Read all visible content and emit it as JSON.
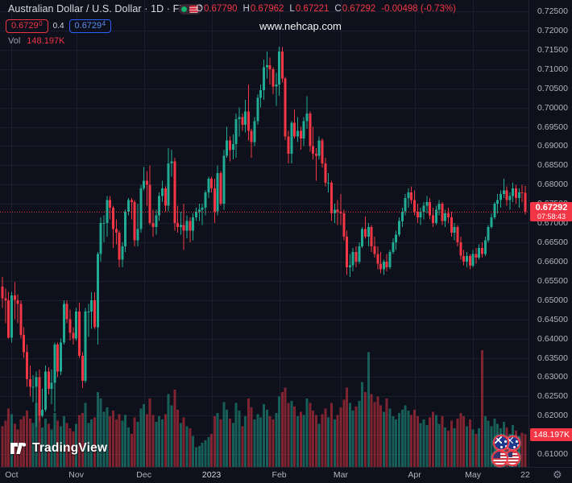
{
  "header": {
    "symbol_title": "Australian Dollar / U.S. Dollar · 1D · FXCM",
    "ohlc": {
      "o_label": "O",
      "o": "0.67790",
      "h_label": "H",
      "h": "0.67962",
      "l_label": "L",
      "l": "0.67221",
      "c_label": "C",
      "c": "0.67292",
      "change": "-0.00498 (-0.73%)"
    },
    "bid": "0.6729",
    "bid_sup": "0",
    "spread": "0.4",
    "ask": "0.6729",
    "ask_sup": "4",
    "vol_label": "Vol",
    "vol_value": "148.197K"
  },
  "watermark": "www.nehcap.com",
  "price_label": {
    "price": "0.67292",
    "countdown": "07:58:43"
  },
  "volume_label": "148.197K",
  "logo": {
    "text": "TradingView"
  },
  "time_axis": {
    "labels": [
      {
        "text": "Oct",
        "index": 3,
        "grid": true,
        "year": false
      },
      {
        "text": "Nov",
        "index": 24,
        "grid": true,
        "year": false
      },
      {
        "text": "Dec",
        "index": 46,
        "grid": true,
        "year": false
      },
      {
        "text": "2023",
        "index": 68,
        "grid": true,
        "year": true
      },
      {
        "text": "Feb",
        "index": 90,
        "grid": true,
        "year": false
      },
      {
        "text": "Mar",
        "index": 110,
        "grid": true,
        "year": false
      },
      {
        "text": "Apr",
        "index": 134,
        "grid": true,
        "year": false
      },
      {
        "text": "May",
        "index": 153,
        "grid": true,
        "year": false
      },
      {
        "text": "22",
        "index": 170,
        "grid": false,
        "year": false
      }
    ],
    "gear": "⚙"
  },
  "price_axis": {
    "ticks": [
      0.725,
      0.72,
      0.715,
      0.71,
      0.705,
      0.7,
      0.695,
      0.69,
      0.685,
      0.68,
      0.675,
      0.67,
      0.665,
      0.66,
      0.655,
      0.65,
      0.645,
      0.64,
      0.635,
      0.63,
      0.625,
      0.62,
      0.615,
      0.61
    ]
  },
  "flags": [
    "australia-flag",
    "australia-flag",
    "us-flag",
    "us-flag"
  ],
  "chart_data": {
    "type": "candlestick+volume",
    "symbol": "AUD/USD",
    "interval": "1D",
    "exchange": "FXCM",
    "current_price": 0.67292,
    "current_volume_k": 148.197,
    "price_axis_range": [
      0.60668,
      0.72793
    ],
    "grid": true,
    "colors": {
      "up": "#22ab94",
      "down": "#f23645",
      "price_line": "#f23645",
      "label_bg": "#f23645"
    },
    "volume_scale_max_k": 530,
    "candles_format": [
      "open",
      "high",
      "low",
      "close",
      "volume_k"
    ],
    "candles": [
      [
        0.6535,
        0.656,
        0.648,
        0.6505,
        185
      ],
      [
        0.6505,
        0.653,
        0.644,
        0.65,
        210
      ],
      [
        0.65,
        0.6522,
        0.64,
        0.6402,
        265
      ],
      [
        0.6402,
        0.6522,
        0.639,
        0.6512,
        240
      ],
      [
        0.6512,
        0.6547,
        0.645,
        0.65,
        195
      ],
      [
        0.65,
        0.6515,
        0.644,
        0.649,
        170
      ],
      [
        0.649,
        0.65,
        0.64,
        0.641,
        215
      ],
      [
        0.641,
        0.643,
        0.635,
        0.6365,
        230
      ],
      [
        0.6365,
        0.6385,
        0.6275,
        0.6295,
        255
      ],
      [
        0.6295,
        0.633,
        0.625,
        0.6275,
        220
      ],
      [
        0.6275,
        0.6305,
        0.6235,
        0.6275,
        200
      ],
      [
        0.6275,
        0.6315,
        0.617,
        0.63,
        290
      ],
      [
        0.63,
        0.632,
        0.6185,
        0.62,
        260
      ],
      [
        0.62,
        0.627,
        0.6195,
        0.6215,
        180
      ],
      [
        0.6215,
        0.633,
        0.621,
        0.6315,
        220
      ],
      [
        0.6315,
        0.6325,
        0.6255,
        0.627,
        195
      ],
      [
        0.627,
        0.632,
        0.623,
        0.6285,
        170
      ],
      [
        0.6285,
        0.639,
        0.621,
        0.6385,
        245
      ],
      [
        0.6385,
        0.639,
        0.63,
        0.6315,
        210
      ],
      [
        0.6315,
        0.64,
        0.6305,
        0.639,
        185
      ],
      [
        0.639,
        0.65,
        0.6385,
        0.649,
        230
      ],
      [
        0.649,
        0.65,
        0.644,
        0.645,
        200
      ],
      [
        0.645,
        0.6475,
        0.6395,
        0.6415,
        175
      ],
      [
        0.6415,
        0.643,
        0.6385,
        0.64,
        160
      ],
      [
        0.64,
        0.648,
        0.6395,
        0.647,
        195
      ],
      [
        0.647,
        0.6493,
        0.635,
        0.6355,
        235
      ],
      [
        0.6355,
        0.6365,
        0.6272,
        0.629,
        245
      ],
      [
        0.629,
        0.648,
        0.6285,
        0.647,
        290
      ],
      [
        0.647,
        0.649,
        0.6405,
        0.647,
        200
      ],
      [
        0.647,
        0.652,
        0.6425,
        0.65,
        215
      ],
      [
        0.65,
        0.652,
        0.6425,
        0.643,
        225
      ],
      [
        0.643,
        0.6625,
        0.6385,
        0.662,
        340
      ],
      [
        0.662,
        0.6715,
        0.66,
        0.67,
        310
      ],
      [
        0.67,
        0.672,
        0.665,
        0.67,
        250
      ],
      [
        0.67,
        0.677,
        0.6665,
        0.676,
        270
      ],
      [
        0.676,
        0.677,
        0.671,
        0.674,
        230
      ],
      [
        0.674,
        0.6745,
        0.6635,
        0.6685,
        255
      ],
      [
        0.6685,
        0.671,
        0.6645,
        0.6675,
        215
      ],
      [
        0.6675,
        0.668,
        0.6585,
        0.6605,
        240
      ],
      [
        0.6605,
        0.665,
        0.6585,
        0.664,
        210
      ],
      [
        0.664,
        0.6735,
        0.6625,
        0.673,
        235
      ],
      [
        0.673,
        0.6765,
        0.672,
        0.676,
        180
      ],
      [
        0.676,
        0.6765,
        0.671,
        0.6755,
        150
      ],
      [
        0.6755,
        0.676,
        0.664,
        0.6655,
        225
      ],
      [
        0.6655,
        0.675,
        0.664,
        0.6685,
        205
      ],
      [
        0.6685,
        0.68,
        0.6675,
        0.679,
        265
      ],
      [
        0.679,
        0.6845,
        0.6785,
        0.681,
        285
      ],
      [
        0.681,
        0.6835,
        0.6745,
        0.68,
        240
      ],
      [
        0.68,
        0.685,
        0.6695,
        0.67,
        310
      ],
      [
        0.67,
        0.6735,
        0.6665,
        0.669,
        235
      ],
      [
        0.669,
        0.6735,
        0.667,
        0.672,
        205
      ],
      [
        0.672,
        0.678,
        0.6705,
        0.677,
        230
      ],
      [
        0.677,
        0.681,
        0.6755,
        0.679,
        215
      ],
      [
        0.679,
        0.6795,
        0.673,
        0.6745,
        240
      ],
      [
        0.6745,
        0.6895,
        0.673,
        0.6855,
        330
      ],
      [
        0.6855,
        0.689,
        0.682,
        0.686,
        280
      ],
      [
        0.686,
        0.687,
        0.668,
        0.67,
        350
      ],
      [
        0.67,
        0.6745,
        0.6675,
        0.669,
        260
      ],
      [
        0.669,
        0.673,
        0.667,
        0.6695,
        200
      ],
      [
        0.6695,
        0.675,
        0.663,
        0.668,
        225
      ],
      [
        0.668,
        0.672,
        0.666,
        0.6705,
        185
      ],
      [
        0.6705,
        0.6715,
        0.665,
        0.668,
        175
      ],
      [
        0.668,
        0.6725,
        0.6655,
        0.6715,
        140
      ],
      [
        0.6715,
        0.674,
        0.6705,
        0.673,
        90
      ],
      [
        0.673,
        0.675,
        0.6705,
        0.6735,
        95
      ],
      [
        0.6735,
        0.675,
        0.6695,
        0.674,
        110
      ],
      [
        0.674,
        0.6785,
        0.672,
        0.678,
        120
      ],
      [
        0.678,
        0.682,
        0.6765,
        0.6815,
        135
      ],
      [
        0.6815,
        0.682,
        0.678,
        0.679,
        150
      ],
      [
        0.679,
        0.6815,
        0.67,
        0.673,
        230
      ],
      [
        0.673,
        0.685,
        0.672,
        0.683,
        245
      ],
      [
        0.683,
        0.6835,
        0.6745,
        0.675,
        215
      ],
      [
        0.675,
        0.689,
        0.6735,
        0.6875,
        295
      ],
      [
        0.6875,
        0.695,
        0.687,
        0.6915,
        260
      ],
      [
        0.6915,
        0.6925,
        0.686,
        0.689,
        220
      ],
      [
        0.689,
        0.693,
        0.6865,
        0.6905,
        200
      ],
      [
        0.6905,
        0.6985,
        0.687,
        0.697,
        290
      ],
      [
        0.697,
        0.7,
        0.6925,
        0.6975,
        255
      ],
      [
        0.6975,
        0.6985,
        0.694,
        0.6955,
        185
      ],
      [
        0.6955,
        0.702,
        0.6935,
        0.699,
        230
      ],
      [
        0.699,
        0.706,
        0.6915,
        0.694,
        310
      ],
      [
        0.694,
        0.6945,
        0.687,
        0.691,
        270
      ],
      [
        0.691,
        0.6975,
        0.69,
        0.6965,
        215
      ],
      [
        0.6965,
        0.7035,
        0.6955,
        0.7025,
        240
      ],
      [
        0.7025,
        0.706,
        0.7,
        0.7045,
        225
      ],
      [
        0.7045,
        0.7125,
        0.702,
        0.7105,
        285
      ],
      [
        0.7105,
        0.7145,
        0.7075,
        0.711,
        260
      ],
      [
        0.711,
        0.713,
        0.706,
        0.71,
        230
      ],
      [
        0.71,
        0.7105,
        0.7035,
        0.7055,
        215
      ],
      [
        0.7055,
        0.709,
        0.7005,
        0.706,
        245
      ],
      [
        0.706,
        0.7158,
        0.703,
        0.7145,
        320
      ],
      [
        0.7145,
        0.7157,
        0.7065,
        0.7075,
        340
      ],
      [
        0.7075,
        0.708,
        0.6915,
        0.6925,
        360
      ],
      [
        0.6925,
        0.694,
        0.6855,
        0.688,
        290
      ],
      [
        0.688,
        0.6965,
        0.6855,
        0.696,
        300
      ],
      [
        0.696,
        0.6995,
        0.692,
        0.6925,
        275
      ],
      [
        0.6925,
        0.6975,
        0.691,
        0.694,
        230
      ],
      [
        0.694,
        0.695,
        0.689,
        0.692,
        250
      ],
      [
        0.692,
        0.6975,
        0.69,
        0.6965,
        235
      ],
      [
        0.6965,
        0.703,
        0.6945,
        0.6985,
        310
      ],
      [
        0.6985,
        0.699,
        0.6885,
        0.69,
        290
      ],
      [
        0.69,
        0.695,
        0.6865,
        0.688,
        255
      ],
      [
        0.688,
        0.6895,
        0.681,
        0.6875,
        235
      ],
      [
        0.6875,
        0.6925,
        0.6865,
        0.6915,
        195
      ],
      [
        0.6915,
        0.692,
        0.6845,
        0.6855,
        240
      ],
      [
        0.6855,
        0.687,
        0.6795,
        0.6805,
        265
      ],
      [
        0.6805,
        0.683,
        0.678,
        0.6805,
        225
      ],
      [
        0.6805,
        0.681,
        0.6705,
        0.6725,
        290
      ],
      [
        0.6725,
        0.675,
        0.67,
        0.6735,
        215
      ],
      [
        0.6735,
        0.676,
        0.6695,
        0.673,
        235
      ],
      [
        0.673,
        0.6775,
        0.6695,
        0.6725,
        270
      ],
      [
        0.6725,
        0.6735,
        0.6655,
        0.6665,
        305
      ],
      [
        0.6665,
        0.668,
        0.6565,
        0.6585,
        360
      ],
      [
        0.6585,
        0.662,
        0.656,
        0.659,
        290
      ],
      [
        0.659,
        0.6635,
        0.6575,
        0.6625,
        255
      ],
      [
        0.6625,
        0.664,
        0.6585,
        0.66,
        275
      ],
      [
        0.66,
        0.665,
        0.6595,
        0.664,
        300
      ],
      [
        0.664,
        0.669,
        0.6635,
        0.6685,
        385
      ],
      [
        0.6685,
        0.6717,
        0.666,
        0.6665,
        340
      ],
      [
        0.6665,
        0.67,
        0.664,
        0.669,
        520
      ],
      [
        0.669,
        0.6695,
        0.6625,
        0.664,
        330
      ],
      [
        0.664,
        0.6665,
        0.661,
        0.662,
        295
      ],
      [
        0.662,
        0.664,
        0.658,
        0.6595,
        320
      ],
      [
        0.6595,
        0.6625,
        0.657,
        0.658,
        280
      ],
      [
        0.658,
        0.6605,
        0.6565,
        0.66,
        250
      ],
      [
        0.66,
        0.662,
        0.6575,
        0.6585,
        310
      ],
      [
        0.6585,
        0.663,
        0.658,
        0.6625,
        265
      ],
      [
        0.6625,
        0.666,
        0.662,
        0.665,
        230
      ],
      [
        0.665,
        0.668,
        0.663,
        0.667,
        215
      ],
      [
        0.667,
        0.6715,
        0.6665,
        0.6705,
        245
      ],
      [
        0.6705,
        0.674,
        0.669,
        0.673,
        260
      ],
      [
        0.673,
        0.6775,
        0.672,
        0.6765,
        280
      ],
      [
        0.6765,
        0.679,
        0.674,
        0.678,
        255
      ],
      [
        0.678,
        0.6795,
        0.675,
        0.676,
        235
      ],
      [
        0.676,
        0.6785,
        0.672,
        0.673,
        260
      ],
      [
        0.673,
        0.675,
        0.67,
        0.6715,
        230
      ],
      [
        0.6715,
        0.674,
        0.6695,
        0.673,
        200
      ],
      [
        0.673,
        0.6755,
        0.671,
        0.6745,
        215
      ],
      [
        0.6745,
        0.677,
        0.6725,
        0.6755,
        190
      ],
      [
        0.6755,
        0.6765,
        0.671,
        0.672,
        225
      ],
      [
        0.672,
        0.674,
        0.669,
        0.67,
        250
      ],
      [
        0.67,
        0.6745,
        0.6695,
        0.6735,
        235
      ],
      [
        0.6735,
        0.676,
        0.672,
        0.675,
        195
      ],
      [
        0.675,
        0.6755,
        0.6695,
        0.6705,
        230
      ],
      [
        0.6705,
        0.6735,
        0.669,
        0.6725,
        180
      ],
      [
        0.6725,
        0.674,
        0.67,
        0.6715,
        165
      ],
      [
        0.6715,
        0.673,
        0.6665,
        0.6675,
        210
      ],
      [
        0.6675,
        0.67,
        0.6655,
        0.669,
        175
      ],
      [
        0.669,
        0.6695,
        0.664,
        0.665,
        220
      ],
      [
        0.665,
        0.6665,
        0.6605,
        0.6615,
        245
      ],
      [
        0.6615,
        0.663,
        0.659,
        0.66,
        230
      ],
      [
        0.66,
        0.6625,
        0.6585,
        0.6615,
        185
      ],
      [
        0.6615,
        0.662,
        0.658,
        0.659,
        215
      ],
      [
        0.659,
        0.663,
        0.6585,
        0.662,
        170
      ],
      [
        0.662,
        0.6635,
        0.6595,
        0.661,
        150
      ],
      [
        0.661,
        0.6645,
        0.6605,
        0.6635,
        175
      ],
      [
        0.6635,
        0.665,
        0.661,
        0.662,
        530
      ],
      [
        0.662,
        0.6665,
        0.6615,
        0.6655,
        230
      ],
      [
        0.6655,
        0.6695,
        0.665,
        0.669,
        210
      ],
      [
        0.669,
        0.6725,
        0.6685,
        0.6715,
        185
      ],
      [
        0.6715,
        0.6755,
        0.671,
        0.675,
        220
      ],
      [
        0.675,
        0.6775,
        0.6725,
        0.676,
        195
      ],
      [
        0.676,
        0.6785,
        0.674,
        0.6775,
        175
      ],
      [
        0.6775,
        0.6815,
        0.6765,
        0.6785,
        205
      ],
      [
        0.6785,
        0.6795,
        0.6745,
        0.676,
        180
      ],
      [
        0.676,
        0.678,
        0.6735,
        0.677,
        150
      ],
      [
        0.677,
        0.6805,
        0.6755,
        0.679,
        190
      ],
      [
        0.679,
        0.68,
        0.675,
        0.6765,
        165
      ],
      [
        0.6765,
        0.679,
        0.674,
        0.678,
        140
      ],
      [
        0.678,
        0.68,
        0.6755,
        0.6779,
        155
      ],
      [
        0.6779,
        0.67962,
        0.67221,
        0.67292,
        148.197
      ]
    ]
  }
}
